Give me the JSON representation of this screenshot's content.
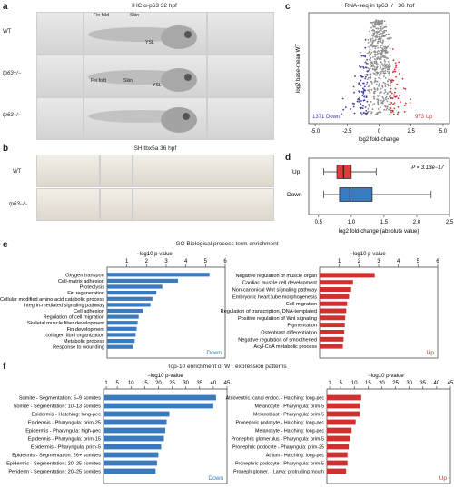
{
  "panel_a": {
    "label": "a",
    "title": "IHC α-p63 32 hpf",
    "rows": [
      "WT",
      "tp63+/−",
      "tp63−/−"
    ],
    "annot": {
      "fin_fold": "Fin fold",
      "skin": "Skin",
      "ysl": "YSL"
    }
  },
  "panel_b": {
    "label": "b",
    "title": "ISH tbx5a 36 hpf",
    "rows": [
      "WT",
      "tp63−/−"
    ]
  },
  "panel_c": {
    "label": "c",
    "title": "RNA-seq in tp63−/− 36 hpf",
    "ylabel": "log2 base-mean WT",
    "xlabel": "log2 fold-change",
    "down_text": "1371 Down",
    "up_text": "973 Up",
    "colors": {
      "down": "#3d3da8",
      "up": "#d03030",
      "ns": "#8c8c8c"
    }
  },
  "panel_d": {
    "label": "d",
    "pvalue": "P = 3.13e−17",
    "xlabel": "log2 fold-change (absolute value)"
  },
  "panel_e": {
    "label": "e",
    "title": "GO Biological process term enrichment",
    "axis_title": "−log10 p-value",
    "down_label": "Down",
    "up_label": "Up"
  },
  "panel_f": {
    "label": "f",
    "title": "Top-10 enrichment of WT expression patterns",
    "axis_title": "−log10 p-value",
    "down_label": "Down",
    "up_label": "Up"
  },
  "chart_data": [
    {
      "type": "scatter",
      "panel": "c",
      "xlim": [
        -5.5,
        5.5
      ],
      "xticks": [
        -5.0,
        -2.5,
        0,
        2.5,
        5.0
      ],
      "summary": {
        "down": 1371,
        "up": 973
      }
    },
    {
      "type": "box",
      "panel": "d",
      "categories": [
        "Up",
        "Down"
      ],
      "xlim": [
        0.35,
        2.5
      ],
      "xticks": [
        0.5,
        1.0,
        1.5,
        2.0,
        2.5
      ],
      "boxes": [
        {
          "name": "Up",
          "whisker_low": 0.58,
          "q1": 0.78,
          "median": 0.88,
          "q3": 1.0,
          "whisker_high": 1.38,
          "color": "#e03a3a"
        },
        {
          "name": "Down",
          "whisker_low": 0.58,
          "q1": 0.82,
          "median": 0.98,
          "q3": 1.32,
          "whisker_high": 2.22,
          "color": "#3a7abf"
        }
      ]
    },
    {
      "type": "bar",
      "panel": "e-down",
      "xlim": [
        0,
        6
      ],
      "xticks": [
        1,
        2,
        3,
        4,
        5,
        6
      ],
      "color": "#3a7abf",
      "categories": [
        "Oxygen transport",
        "Cell-matrix adhesion",
        "Proteolysis",
        "Fin regeneration",
        "Cellular modified amino acid catabolic process",
        "Integrin-mediated signaling pathway",
        "Cell adhesion",
        "Regulation of cell migration",
        "Skeletal muscle fiber development",
        "Fin development",
        "collagen fibril organization",
        "Metabolic process",
        "Response to wounding"
      ],
      "values": [
        5.2,
        3.6,
        2.8,
        2.5,
        2.3,
        2.2,
        1.8,
        1.6,
        1.55,
        1.5,
        1.45,
        1.4,
        1.3
      ]
    },
    {
      "type": "bar",
      "panel": "e-up",
      "xlim": [
        0,
        6
      ],
      "xticks": [
        1,
        2,
        3,
        4,
        5,
        6
      ],
      "color": "#d03030",
      "categories": [
        "Negative regulation of muscle organ",
        "Cardiac muscle cell development",
        "Non-canonical Wnt signaling pathway",
        "Embryonic heart tube morphogenesis",
        "Cell migration",
        "Regulation of transcription, DNA-templated",
        "Positive regulation of Wnt signaling",
        "Pigmentation",
        "Osteoblast differentiation",
        "Negative regulation of smoothened",
        "Acyl-CoA metabolic process"
      ],
      "values": [
        2.8,
        1.7,
        1.6,
        1.5,
        1.4,
        1.35,
        1.3,
        1.28,
        1.25,
        1.22,
        1.18
      ]
    },
    {
      "type": "bar",
      "panel": "f-down",
      "xlim": [
        0,
        45
      ],
      "xticks": [
        1,
        5,
        10,
        15,
        20,
        25,
        30,
        35,
        40,
        45
      ],
      "color": "#3a7abf",
      "categories": [
        "Somite - Segmentation: 5–9 somites",
        "Somite - Segmentation: 10–13 somites",
        "Epidermis - Hatching: long-pec",
        "Epidermis - Pharyngula: prim-25",
        "Epidermis - Pharyngula: high-pec",
        "Epidermis - Pharyngula: prim-15",
        "Epidermis - Pharyngula: prim-5",
        "Epidermis - Segmentation: 26+ somites",
        "Epidermis - Segmentation: 20–25 somites",
        "Periderm - Segmentation: 20–25 somites"
      ],
      "values": [
        41,
        40,
        24,
        23,
        22.5,
        22,
        21,
        20,
        19.5,
        19
      ]
    },
    {
      "type": "bar",
      "panel": "f-up",
      "xlim": [
        0,
        45
      ],
      "xticks": [
        1,
        5,
        10,
        15,
        20,
        25,
        30,
        35,
        40,
        45
      ],
      "color": "#d03030",
      "categories": [
        "Atrioventric. canal endoc. - Hatching: long-pec",
        "Melanocyte - Pharyngula: prim-5",
        "Melanoblast - Pharyngula: prim-5",
        "Pronephric podocyte - Hatching: long-pec",
        "Melanocyte - Hatching: long-pec",
        "Pronephric glomerulus - Pharyngula: prim-5",
        "Pronephric podocyte - Pharyngula: prim-25",
        "Atrium - Hatching: long-pec",
        "Pronephric podocyte - Pharyngula: prim-5",
        "Proneph glomer. - Larva: protruding mouth"
      ],
      "values": [
        12.5,
        12,
        12,
        10.5,
        9,
        8.5,
        8,
        7.5,
        7.5,
        7
      ]
    }
  ]
}
